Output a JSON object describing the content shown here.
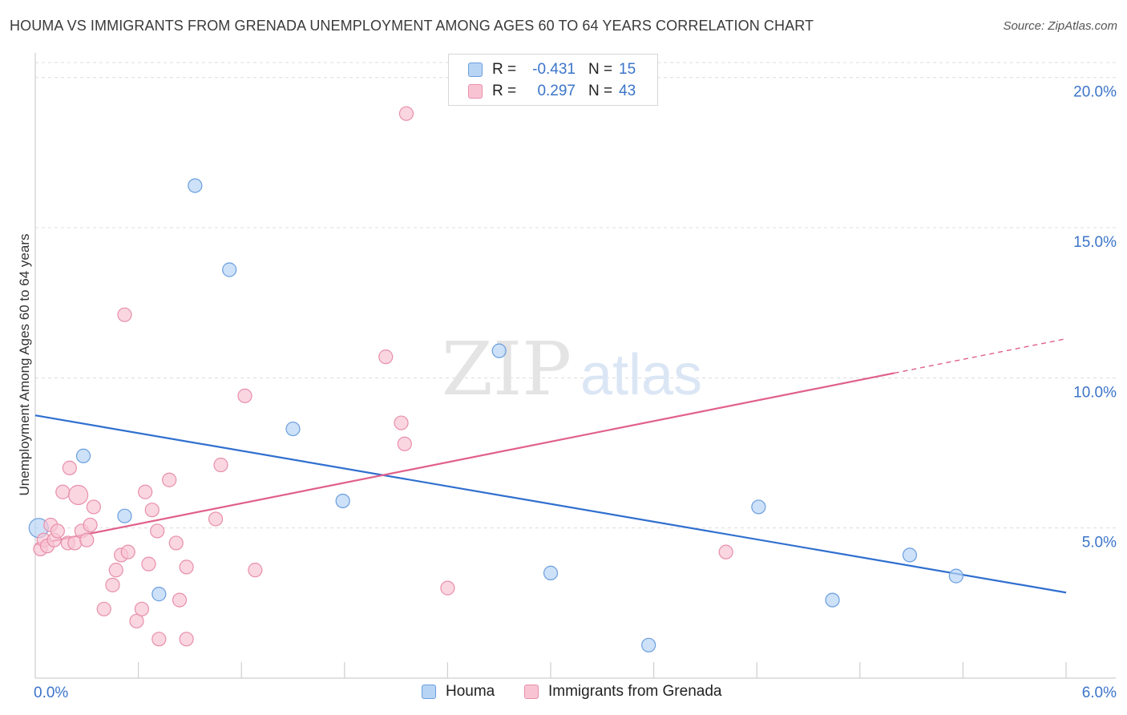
{
  "title": "HOUMA VS IMMIGRANTS FROM GRENADA UNEMPLOYMENT AMONG AGES 60 TO 64 YEARS CORRELATION CHART",
  "source": "Source: ZipAtlas.com",
  "watermark": {
    "zip": "ZIP",
    "atlas": "atlas"
  },
  "colors": {
    "houma_fill": "#b8d4f5",
    "houma_stroke": "#6a9edf",
    "houma_line": "#2f6fcf",
    "grenada_fill": "#f8c4d4",
    "grenada_stroke": "#e88fab",
    "grenada_line": "#e0608a",
    "axis_text": "#3b74c9",
    "grid": "#dcdcdc"
  },
  "legend": {
    "rows": [
      {
        "series": "houma",
        "r_label": "R =",
        "r_value": "-0.431",
        "n_label": "N =",
        "n_value": "15"
      },
      {
        "series": "grenada",
        "r_label": "R =",
        "r_value": "0.297",
        "n_label": "N =",
        "n_value": "43"
      }
    ]
  },
  "bottom_legend": [
    {
      "series": "houma",
      "label": "Houma"
    },
    {
      "series": "grenada",
      "label": "Immigrants from Grenada"
    }
  ],
  "chart_data": {
    "type": "scatter",
    "title": "HOUMA VS IMMIGRANTS FROM GRENADA UNEMPLOYMENT AMONG AGES 60 TO 64 YEARS CORRELATION CHART",
    "xlabel": "",
    "ylabel": "Unemployment Among Ages 60 to 64 years",
    "xlim": [
      0,
      6.0
    ],
    "ylim": [
      0,
      20.5
    ],
    "x_tick_labels": [
      {
        "value": 0,
        "label": "0.0%"
      },
      {
        "value": 6.0,
        "label": "6.0%"
      }
    ],
    "x_minor_ticks": [
      0.6,
      1.2,
      1.8,
      2.4,
      3.0,
      3.6,
      4.2,
      4.8,
      5.4,
      6.0
    ],
    "y_ticks": [
      {
        "value": 5,
        "label": "5.0%"
      },
      {
        "value": 10,
        "label": "10.0%"
      },
      {
        "value": 15,
        "label": "15.0%"
      },
      {
        "value": 20,
        "label": "20.0%"
      }
    ],
    "series": [
      {
        "name": "Houma",
        "key": "houma",
        "points": [
          {
            "x": 0.02,
            "y": 5.0,
            "big": true
          },
          {
            "x": 0.28,
            "y": 7.4
          },
          {
            "x": 0.52,
            "y": 5.4
          },
          {
            "x": 0.72,
            "y": 2.8
          },
          {
            "x": 0.93,
            "y": 16.4
          },
          {
            "x": 1.13,
            "y": 13.6
          },
          {
            "x": 1.5,
            "y": 8.3
          },
          {
            "x": 1.79,
            "y": 5.9
          },
          {
            "x": 2.7,
            "y": 10.9
          },
          {
            "x": 3.0,
            "y": 3.5
          },
          {
            "x": 3.57,
            "y": 1.1
          },
          {
            "x": 4.21,
            "y": 5.7
          },
          {
            "x": 4.64,
            "y": 2.6
          },
          {
            "x": 5.09,
            "y": 4.1
          },
          {
            "x": 5.36,
            "y": 3.4
          }
        ],
        "trend": {
          "x0": 0.0,
          "y0": 8.75,
          "x1": 6.0,
          "y1": 2.85,
          "dash_from": null
        }
      },
      {
        "name": "Immigrants from Grenada",
        "key": "grenada",
        "points": [
          {
            "x": 0.03,
            "y": 4.3
          },
          {
            "x": 0.05,
            "y": 4.6
          },
          {
            "x": 0.07,
            "y": 4.4
          },
          {
            "x": 0.09,
            "y": 5.1
          },
          {
            "x": 0.11,
            "y": 4.6
          },
          {
            "x": 0.13,
            "y": 4.9
          },
          {
            "x": 0.16,
            "y": 6.2
          },
          {
            "x": 0.19,
            "y": 4.5
          },
          {
            "x": 0.2,
            "y": 7.0
          },
          {
            "x": 0.23,
            "y": 4.5
          },
          {
            "x": 0.25,
            "y": 6.1,
            "big": true
          },
          {
            "x": 0.27,
            "y": 4.9
          },
          {
            "x": 0.3,
            "y": 4.6
          },
          {
            "x": 0.32,
            "y": 5.1
          },
          {
            "x": 0.34,
            "y": 5.7
          },
          {
            "x": 0.4,
            "y": 2.3
          },
          {
            "x": 0.45,
            "y": 3.1
          },
          {
            "x": 0.47,
            "y": 3.6
          },
          {
            "x": 0.5,
            "y": 4.1
          },
          {
            "x": 0.52,
            "y": 12.1
          },
          {
            "x": 0.54,
            "y": 4.2
          },
          {
            "x": 0.59,
            "y": 1.9
          },
          {
            "x": 0.62,
            "y": 2.3
          },
          {
            "x": 0.64,
            "y": 6.2
          },
          {
            "x": 0.66,
            "y": 3.8
          },
          {
            "x": 0.68,
            "y": 5.6
          },
          {
            "x": 0.71,
            "y": 4.9
          },
          {
            "x": 0.72,
            "y": 1.3
          },
          {
            "x": 0.78,
            "y": 6.6
          },
          {
            "x": 0.82,
            "y": 4.5
          },
          {
            "x": 0.84,
            "y": 2.6
          },
          {
            "x": 0.88,
            "y": 3.7
          },
          {
            "x": 0.88,
            "y": 1.3
          },
          {
            "x": 1.05,
            "y": 5.3
          },
          {
            "x": 1.08,
            "y": 7.1
          },
          {
            "x": 1.22,
            "y": 9.4
          },
          {
            "x": 1.28,
            "y": 3.6
          },
          {
            "x": 2.04,
            "y": 10.7
          },
          {
            "x": 2.13,
            "y": 8.5
          },
          {
            "x": 2.15,
            "y": 7.8
          },
          {
            "x": 2.16,
            "y": 18.8
          },
          {
            "x": 2.4,
            "y": 3.0
          },
          {
            "x": 4.02,
            "y": 4.2
          }
        ],
        "trend": {
          "x0": 0.0,
          "y0": 4.45,
          "x1": 6.0,
          "y1": 11.3,
          "dash_from": 5.0
        }
      }
    ]
  }
}
